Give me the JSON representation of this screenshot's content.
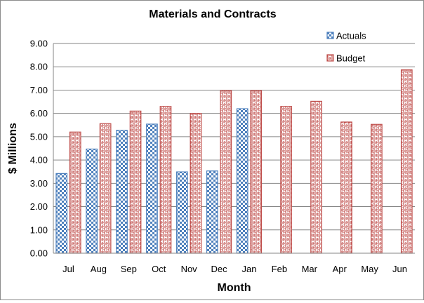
{
  "chart_data": {
    "type": "bar",
    "title": "Materials and Contracts",
    "xlabel": "Month",
    "ylabel": "$ Millions",
    "categories": [
      "Jul",
      "Aug",
      "Sep",
      "Oct",
      "Nov",
      "Dec",
      "Jan",
      "Feb",
      "Mar",
      "Apr",
      "May",
      "Jun"
    ],
    "series": [
      {
        "name": "Actuals",
        "color": "#4f81bd",
        "pattern": "checkerboard",
        "values": [
          3.42,
          4.47,
          5.27,
          5.54,
          3.49,
          3.53,
          6.2,
          null,
          null,
          null,
          null,
          null
        ]
      },
      {
        "name": "Budget",
        "color": "#c0504d",
        "pattern": "maze",
        "values": [
          5.2,
          5.56,
          6.1,
          6.3,
          6.0,
          6.98,
          6.98,
          6.3,
          6.52,
          5.63,
          5.53,
          7.87
        ]
      }
    ],
    "ylim": [
      0,
      9
    ],
    "yticks": [
      "0.00",
      "1.00",
      "2.00",
      "3.00",
      "4.00",
      "5.00",
      "6.00",
      "7.00",
      "8.00",
      "9.00"
    ],
    "grid": true,
    "legend_position": "top-right"
  }
}
